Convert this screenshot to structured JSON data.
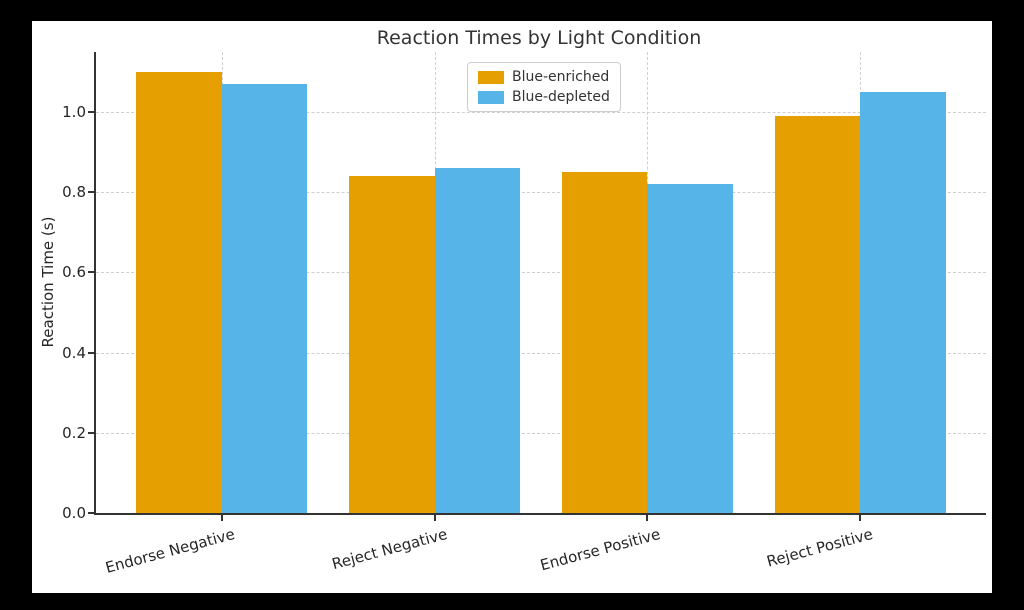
{
  "window": {
    "outer_background": "#000000",
    "figure_background": "#ffffff"
  },
  "chart_data": {
    "type": "bar",
    "title": "Reaction Times by Light Condition",
    "xlabel": "",
    "ylabel": "Reaction Time (s)",
    "categories": [
      "Endorse Negative",
      "Reject Negative",
      "Endorse Positive",
      "Reject Positive"
    ],
    "series": [
      {
        "name": "Blue-enriched",
        "color": "#E69F00",
        "values": [
          1.1,
          0.84,
          0.85,
          0.99
        ]
      },
      {
        "name": "Blue-depleted",
        "color": "#56B4E9",
        "values": [
          1.07,
          0.86,
          0.82,
          1.05
        ]
      }
    ],
    "ylim": [
      0,
      1.15
    ],
    "yticks": [
      "0.0",
      "0.2",
      "0.4",
      "0.6",
      "0.8",
      "1.0"
    ],
    "grid": "dashed, both axes",
    "legend_position": "upper center",
    "bar_group_width": 0.8,
    "x_label_rotation_deg": 15,
    "colors": {
      "spine": "#333333",
      "grid": "#cfcfcf",
      "tick_text": "#262626",
      "title_text": "#333333"
    }
  }
}
